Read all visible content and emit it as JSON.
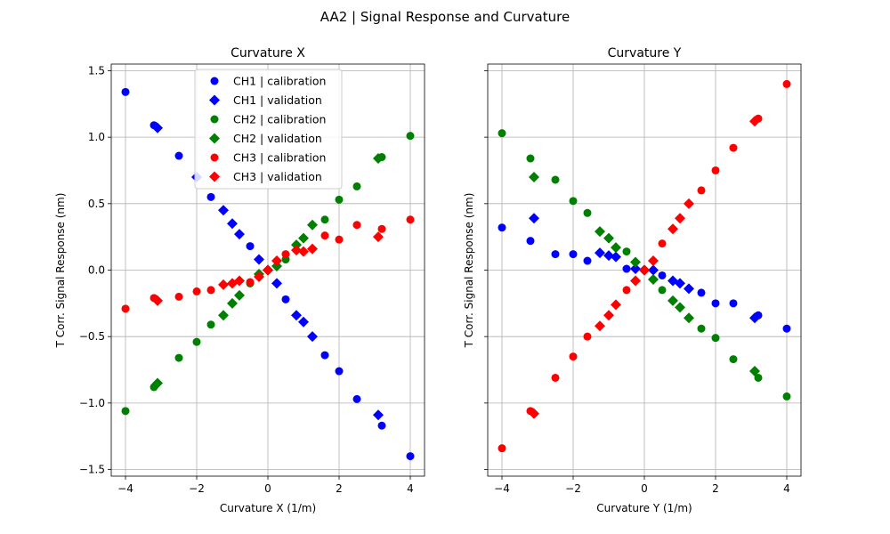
{
  "figure": {
    "suptitle": "AA2 | Signal Response and Curvature"
  },
  "chart_data": [
    {
      "type": "scatter",
      "title": "Curvature X",
      "xlabel": "Curvature X (1/m)",
      "ylabel": "T Corr. Signal Response (nm)",
      "xlim": [
        -4.4,
        4.4
      ],
      "ylim": [
        -1.55,
        1.55
      ],
      "xticks": [
        -4,
        -2,
        0,
        2,
        4
      ],
      "yticks": [
        -1.5,
        -1.0,
        -0.5,
        0.0,
        0.5,
        1.0,
        1.5
      ],
      "xtick_labels": [
        "−4",
        "−2",
        "0",
        "2",
        "4"
      ],
      "ytick_labels": [
        "−1.5",
        "−1.0",
        "−0.5",
        "0.0",
        "0.5",
        "1.0",
        "1.5"
      ],
      "grid": true,
      "legend": "top-center",
      "series": [
        {
          "name": "CH1 | calibration",
          "marker": "circle",
          "color": "#0000ff",
          "x": [
            -4,
            -3.2,
            -2.5,
            -1.6,
            -0.5,
            0.5,
            1.6,
            2.0,
            2.5,
            3.2,
            4.0
          ],
          "y": [
            1.34,
            1.09,
            0.86,
            0.55,
            0.18,
            -0.22,
            -0.64,
            -0.76,
            -0.97,
            -1.17,
            -1.4
          ]
        },
        {
          "name": "CH1 | validation",
          "marker": "diamond",
          "color": "#0000ff",
          "x": [
            -3.1,
            -2.0,
            -1.25,
            -1.0,
            -0.8,
            -0.25,
            0.0,
            0.25,
            0.8,
            1.0,
            1.25,
            3.1
          ],
          "y": [
            1.07,
            0.7,
            0.45,
            0.35,
            0.27,
            0.08,
            0.0,
            -0.1,
            -0.34,
            -0.39,
            -0.5,
            -1.09
          ]
        },
        {
          "name": "CH2 | calibration",
          "marker": "circle",
          "color": "#008000",
          "x": [
            -4,
            -3.2,
            -2.5,
            -2.0,
            -1.6,
            -0.5,
            0.5,
            1.6,
            2.0,
            2.5,
            3.2,
            4.0
          ],
          "y": [
            -1.06,
            -0.88,
            -0.66,
            -0.54,
            -0.41,
            -0.1,
            0.08,
            0.38,
            0.53,
            0.63,
            0.85,
            1.01
          ]
        },
        {
          "name": "CH2 | validation",
          "marker": "diamond",
          "color": "#008000",
          "x": [
            -3.1,
            -1.25,
            -1.0,
            -0.8,
            -0.25,
            0.0,
            0.25,
            0.8,
            1.0,
            1.25,
            3.1
          ],
          "y": [
            -0.85,
            -0.34,
            -0.25,
            -0.19,
            -0.03,
            0.0,
            0.03,
            0.19,
            0.24,
            0.34,
            0.84
          ]
        },
        {
          "name": "CH3 | calibration",
          "marker": "circle",
          "color": "#ff0000",
          "x": [
            -4,
            -3.2,
            -2.5,
            -2.0,
            -1.6,
            -0.5,
            0.5,
            1.6,
            2.0,
            2.5,
            3.2,
            4.0
          ],
          "y": [
            -0.29,
            -0.21,
            -0.2,
            -0.16,
            -0.15,
            -0.09,
            0.12,
            0.26,
            0.23,
            0.34,
            0.31,
            0.38
          ]
        },
        {
          "name": "CH3 | validation",
          "marker": "diamond",
          "color": "#ff0000",
          "x": [
            -3.1,
            -1.25,
            -1.0,
            -0.8,
            -0.25,
            0.0,
            0.25,
            0.8,
            1.0,
            1.25,
            3.1
          ],
          "y": [
            -0.23,
            -0.11,
            -0.1,
            -0.08,
            -0.05,
            0.0,
            0.07,
            0.15,
            0.14,
            0.16,
            0.25
          ]
        }
      ]
    },
    {
      "type": "scatter",
      "title": "Curvature Y",
      "xlabel": "Curvature Y (1/m)",
      "ylabel": "T Corr. Signal Response (nm)",
      "xlim": [
        -4.4,
        4.4
      ],
      "ylim": [
        -1.55,
        1.55
      ],
      "xticks": [
        -4,
        -2,
        0,
        2,
        4
      ],
      "yticks": [
        -1.5,
        -1.0,
        -0.5,
        0.0,
        0.5,
        1.0,
        1.5
      ],
      "xtick_labels": [
        "−4",
        "−2",
        "0",
        "2",
        "4"
      ],
      "ytick_labels": [
        "−1.5",
        "−1.0",
        "−0.5",
        "0.0",
        "0.5",
        "1.0",
        "1.5"
      ],
      "grid": true,
      "sharey": true,
      "series": [
        {
          "name": "CH1 | calibration",
          "marker": "circle",
          "color": "#0000ff",
          "x": [
            -4,
            -3.2,
            -2.5,
            -2.0,
            -1.6,
            -0.5,
            0.5,
            1.6,
            2.0,
            2.5,
            3.2,
            4.0
          ],
          "y": [
            0.32,
            0.22,
            0.12,
            0.12,
            0.07,
            0.01,
            -0.04,
            -0.17,
            -0.25,
            -0.25,
            -0.34,
            -0.44
          ]
        },
        {
          "name": "CH1 | validation",
          "marker": "diamond",
          "color": "#0000ff",
          "x": [
            -3.1,
            -1.25,
            -1.0,
            -0.8,
            -0.25,
            0.0,
            0.25,
            0.8,
            1.0,
            1.25,
            3.1
          ],
          "y": [
            0.39,
            0.13,
            0.11,
            0.1,
            0.01,
            0.0,
            0.0,
            -0.08,
            -0.1,
            -0.14,
            -0.36
          ]
        },
        {
          "name": "CH2 | calibration",
          "marker": "circle",
          "color": "#008000",
          "x": [
            -4,
            -3.2,
            -2.5,
            -2.0,
            -1.6,
            -0.5,
            0.5,
            1.6,
            2.0,
            2.5,
            3.2,
            4.0
          ],
          "y": [
            1.03,
            0.84,
            0.68,
            0.52,
            0.43,
            0.14,
            -0.15,
            -0.44,
            -0.51,
            -0.67,
            -0.81,
            -0.95
          ]
        },
        {
          "name": "CH2 | validation",
          "marker": "diamond",
          "color": "#008000",
          "x": [
            -3.1,
            -1.25,
            -1.0,
            -0.8,
            -0.25,
            0.0,
            0.25,
            0.8,
            1.0,
            1.25,
            3.1
          ],
          "y": [
            0.7,
            0.29,
            0.24,
            0.17,
            0.06,
            0.0,
            -0.07,
            -0.23,
            -0.28,
            -0.36,
            -0.76
          ]
        },
        {
          "name": "CH3 | calibration",
          "marker": "circle",
          "color": "#ff0000",
          "x": [
            -4,
            -3.2,
            -2.5,
            -2.0,
            -1.6,
            -0.5,
            0.5,
            1.6,
            2.0,
            2.5,
            3.2,
            4.0
          ],
          "y": [
            -1.34,
            -1.06,
            -0.81,
            -0.65,
            -0.5,
            -0.15,
            0.2,
            0.6,
            0.75,
            0.92,
            1.14,
            1.4
          ]
        },
        {
          "name": "CH3 | validation",
          "marker": "diamond",
          "color": "#ff0000",
          "x": [
            -3.1,
            -1.25,
            -1.0,
            -0.8,
            -0.25,
            0.0,
            0.25,
            0.8,
            1.0,
            1.25,
            3.1
          ],
          "y": [
            -1.08,
            -0.42,
            -0.34,
            -0.26,
            -0.08,
            0.0,
            0.07,
            0.31,
            0.39,
            0.5,
            1.12
          ]
        }
      ]
    }
  ]
}
